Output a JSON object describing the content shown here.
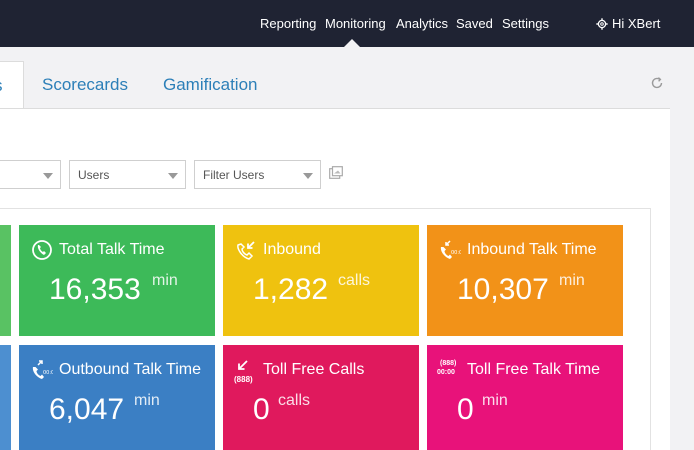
{
  "nav": {
    "links": [
      "Reporting",
      "Monitoring",
      "Analytics",
      "Saved",
      "Settings"
    ],
    "active": "Monitoring",
    "user_label": "Hi XBert"
  },
  "tabs": {
    "active_partial": "s",
    "items": [
      "Scorecards",
      "Gamification"
    ]
  },
  "filters": {
    "users": "Users",
    "filter_users": "Filter Users"
  },
  "tiles": [
    {
      "title": "Total Talk Time",
      "value": "16,353",
      "unit": "min",
      "color": "#3dba59",
      "icon": "clock-phone-icon"
    },
    {
      "title": "Inbound",
      "value": "1,282",
      "unit": "calls",
      "color": "#efc20f",
      "icon": "inbound-call-icon"
    },
    {
      "title": "Inbound Talk Time",
      "value": "10,307",
      "unit": "min",
      "color": "#f29218",
      "icon": "inbound-timer-icon"
    },
    {
      "title": "Outbound Talk Time",
      "value": "6,047",
      "unit": "min",
      "color": "#3b7fc4",
      "icon": "outbound-timer-icon"
    },
    {
      "title": "Toll Free Calls",
      "value": "0",
      "unit": "calls",
      "color": "#e0195d",
      "icon": "toll-free-call-icon"
    },
    {
      "title": "Toll Free Talk Time",
      "value": "0",
      "unit": "min",
      "color": "#e8127a",
      "icon": "toll-free-timer-icon"
    }
  ],
  "colors": {
    "nav_bg": "#1f2333",
    "link": "#2c7fb8",
    "stub_left_top": "#59c263",
    "stub_left_bottom": "#4d8fd0"
  },
  "toll_free_code": "(888)",
  "toll_free_timer": "00:00"
}
